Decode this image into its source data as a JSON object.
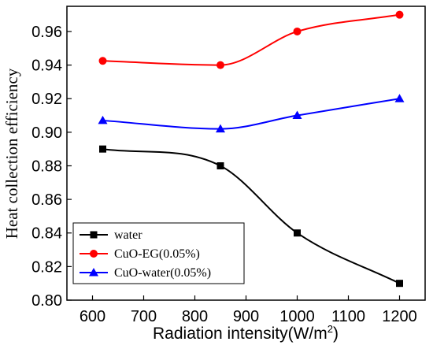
{
  "chart_data": {
    "type": "line",
    "title": "",
    "xlabel": "Radiation intensity(W/m",
    "xlabel_superscript": "2",
    "xlabel_suffix": ")",
    "ylabel": "Heat collection efficiency",
    "xlim": [
      550,
      1250
    ],
    "ylim": [
      0.8,
      0.975
    ],
    "xticks": [
      "600",
      "700",
      "800",
      "900",
      "1000",
      "1100",
      "1200"
    ],
    "yticks": [
      "0.80",
      "0.82",
      "0.84",
      "0.86",
      "0.88",
      "0.90",
      "0.92",
      "0.94",
      "0.96"
    ],
    "x": [
      620,
      850,
      1000,
      1200
    ],
    "series": [
      {
        "name": "water",
        "values": [
          0.89,
          0.88,
          0.84,
          0.81
        ],
        "color": "#000000",
        "marker": "square"
      },
      {
        "name": "CuO-EG(0.05%)",
        "values": [
          0.9425,
          0.94,
          0.96,
          0.97
        ],
        "color": "#ff0000",
        "marker": "circle"
      },
      {
        "name": "CuO-water(0.05%)",
        "values": [
          0.907,
          0.902,
          0.91,
          0.92
        ],
        "color": "#0000ff",
        "marker": "triangle"
      }
    ],
    "legend_position": "bottom-left",
    "grid": false
  }
}
